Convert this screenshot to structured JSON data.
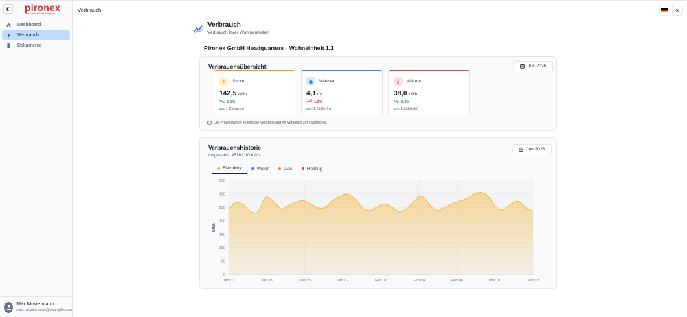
{
  "sidebar": {
    "logo_word": "pironex",
    "logo_tagline": "smart embedded solutions",
    "items": [
      {
        "label": "Dashboard",
        "icon": "home-icon",
        "active": false
      },
      {
        "label": "Verbrauch",
        "icon": "bolt-icon",
        "active": true
      },
      {
        "label": "Dokumente",
        "icon": "document-icon",
        "active": false
      }
    ],
    "user": {
      "name": "Max Mustermann",
      "email": "max.mustermann@example.com"
    }
  },
  "topbar": {
    "breadcrumb": "Verbrauch",
    "flag_icon": "germany-flag-icon",
    "theme_icon": "sun-icon"
  },
  "page": {
    "title": "Verbrauch",
    "subtitle": "Verbrauch Ihrer Wohneinheiten",
    "unit_name": "Pironex GmbH Headquarters · Wohneinheit 1.1"
  },
  "overview": {
    "title": "Verbrauchsübersicht",
    "month": "Jun 2026",
    "tiles": [
      {
        "label": "Strom",
        "value": "142,5",
        "unit": "kWh",
        "change": "3.2%",
        "trend": "down",
        "meters": "von 1 Zähler(n)",
        "color": "#f59e0b",
        "icon": "lightning-icon"
      },
      {
        "label": "Wasser",
        "value": "4,1",
        "unit": "m³",
        "change": "1.0%",
        "trend": "up",
        "meters": "von 1 Zähler(n)",
        "color": "#3b82f6",
        "icon": "water-drop-icon"
      },
      {
        "label": "Wärme",
        "value": "38,0",
        "unit": "kWh",
        "change": "5.4%",
        "trend": "down",
        "meters": "von 1 Zähler(n)",
        "color": "#ef4444",
        "icon": "thermometer-icon"
      }
    ],
    "info": "Die Prozentwerte zeigen die Veränderung im Vergleich zum Vormonat."
  },
  "history": {
    "title": "Verbrauchshistorie",
    "total": "Insgesamt: 45161.10 kWh",
    "month": "Jun 2026",
    "legend": [
      {
        "name": "Electricity",
        "color": "#f5b83d",
        "active": true
      },
      {
        "name": "Water",
        "color": "#3b82f6",
        "active": false
      },
      {
        "name": "Gas",
        "color": "#f97316",
        "active": false
      },
      {
        "name": "Heating",
        "color": "#ef4444",
        "active": false
      }
    ]
  },
  "chart_data": {
    "type": "area",
    "ylabel": "kWh",
    "ylim": [
      0,
      350
    ],
    "yticks": [
      0,
      50,
      100,
      150,
      200,
      250,
      300,
      350
    ],
    "xticks": [
      "Jan 01",
      "Jan 03",
      "Jan 05",
      "Jan 07",
      "Feb 02",
      "Feb 04",
      "Feb 06",
      "Mär 01",
      "Mär 03"
    ],
    "grid": true,
    "series": [
      {
        "name": "Electricity",
        "color": "#f5b83d",
        "values": [
          245,
          268,
          258,
          233,
          235,
          288,
          272,
          245,
          255,
          268,
          275,
          262,
          248,
          250,
          275,
          292,
          298,
          282,
          248,
          238,
          252,
          262,
          250,
          233,
          245,
          275,
          292,
          262,
          238,
          248,
          262,
          272,
          282,
          298,
          305,
          290,
          250,
          240,
          262,
          272,
          250,
          235
        ]
      }
    ]
  }
}
